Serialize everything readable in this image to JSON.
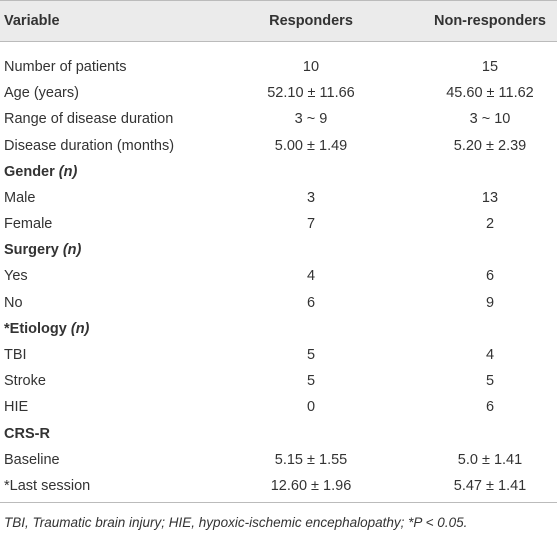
{
  "table": {
    "header": [
      "Variable",
      "Responders",
      "Non-responders"
    ],
    "rows": [
      {
        "cells": [
          "Number of patients",
          "10",
          "15"
        ]
      },
      {
        "cells": [
          "Age (years)",
          "52.10 ± 11.66",
          "45.60 ± 11.62"
        ]
      },
      {
        "cells": [
          "Range of disease duration",
          "3 ~ 9",
          "3 ~ 10"
        ]
      },
      {
        "cells": [
          "Disease duration (months)",
          "5.00 ± 1.49",
          "5.20 ± 2.39"
        ]
      },
      {
        "section": "Gender",
        "qualifier": "(n)"
      },
      {
        "cells": [
          "Male",
          "3",
          "13"
        ]
      },
      {
        "cells": [
          "Female",
          "7",
          "2"
        ]
      },
      {
        "section": "Surgery",
        "qualifier": "(n)"
      },
      {
        "cells": [
          "Yes",
          "4",
          "6"
        ]
      },
      {
        "cells": [
          "No",
          "6",
          "9"
        ]
      },
      {
        "section": "*Etiology",
        "qualifier": "(n)"
      },
      {
        "cells": [
          "TBI",
          "5",
          "4"
        ]
      },
      {
        "cells": [
          "Stroke",
          "5",
          "5"
        ]
      },
      {
        "cells": [
          "HIE",
          "0",
          "6"
        ]
      },
      {
        "section": "CRS-R"
      },
      {
        "cells": [
          "Baseline",
          "5.15 ± 1.55",
          "5.0 ± 1.41"
        ]
      },
      {
        "cells": [
          "*Last session",
          "12.60 ± 1.96",
          "5.47 ± 1.41"
        ]
      }
    ],
    "footnote": "TBI, Traumatic brain injury; HIE, hypoxic-ischemic encephalopathy; *P < 0.05."
  }
}
